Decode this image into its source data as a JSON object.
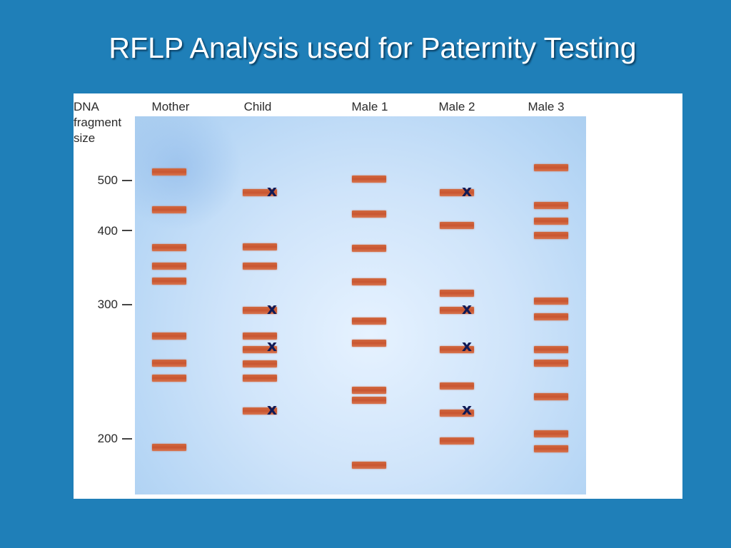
{
  "title": "RFLP Analysis used for Paternity Testing",
  "axis": {
    "title_lines": [
      "DNA",
      "fragment",
      "size"
    ],
    "ticks": [
      "500",
      "400",
      "300",
      "200"
    ]
  },
  "lanes": [
    "Mother",
    "Child",
    "Male 1",
    "Male 2",
    "Male 3"
  ],
  "marker_symbol": "x",
  "colors": {
    "background": "#1f7fb8",
    "band": "#c95530",
    "marker": "#111a55",
    "gel": "#cfe4fa"
  }
}
